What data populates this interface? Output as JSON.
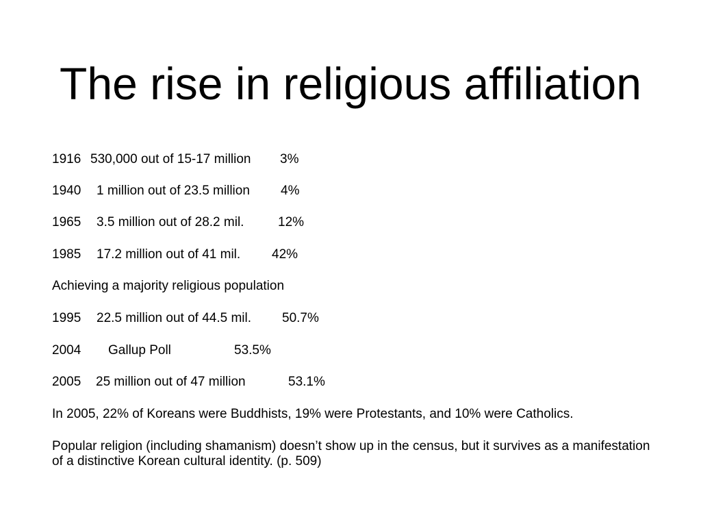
{
  "slide": {
    "title": "The rise in religious affiliation",
    "rows": [
      {
        "year": "1916",
        "desc": "530,000 out of 15-17 million",
        "pct": "3%"
      },
      {
        "year": "1940",
        "desc": "1 million out of 23.5 million",
        "pct": "4%"
      },
      {
        "year": "1965",
        "desc": "3.5 million out of 28.2 mil.",
        "pct": "12%"
      },
      {
        "year": "1985",
        "desc": "17.2 million out of 41 mil.",
        "pct": "42%"
      }
    ],
    "subheading": "Achieving a majority religious population",
    "rows2": [
      {
        "year": "1995",
        "desc": "22.5 million out of 44.5 mil.",
        "pct": "50.7%"
      },
      {
        "year": "2004",
        "desc": "Gallup Poll",
        "pct": "53.5%"
      },
      {
        "year": "2005",
        "desc": "25 million out of 47 million",
        "pct": "53.1%"
      }
    ],
    "note_2005": "In 2005, 22% of Koreans were Buddhists, 19% were Protestants, and 10% were Catholics.",
    "note_popular": "Popular religion  (including shamanism) doesn’t show up in the census, but it survives as a manifestation of a distinctive Korean cultural identity. (p. 509)"
  }
}
